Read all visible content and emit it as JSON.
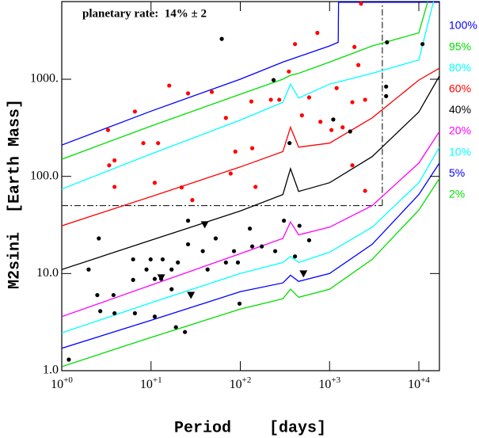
{
  "chart_data": {
    "type": "line",
    "annotation": "planetary rate:  14% ± 2",
    "xlabel": "Period    [days]",
    "ylabel": "M2sini  [Earth Mass]",
    "xscale": "log",
    "yscale": "log",
    "xlim": [
      1,
      17000
    ],
    "ylim": [
      1,
      6300
    ],
    "xticks": [
      {
        "value": 1,
        "label": "10",
        "exponent": "+0"
      },
      {
        "value": 10,
        "label": "10",
        "exponent": "+1"
      },
      {
        "value": 100,
        "label": "10",
        "exponent": "+2"
      },
      {
        "value": 1000,
        "label": "10",
        "exponent": "+3"
      },
      {
        "value": 10000,
        "label": "10",
        "exponent": "+4"
      }
    ],
    "yticks": [
      {
        "value": 1,
        "label": "1.0"
      },
      {
        "value": 10,
        "label": "10.0"
      },
      {
        "value": 100,
        "label": "100.0"
      },
      {
        "value": 1000,
        "label": "1000."
      }
    ],
    "series": [
      {
        "name": "100%",
        "color": "#0000ff",
        "x": [
          1,
          10,
          100,
          300,
          1000,
          1250,
          1260,
          17000
        ],
        "values": [
          210,
          470,
          1000,
          1500,
          2200,
          2400,
          6200,
          6200
        ]
      },
      {
        "name": "95%",
        "color": "#00dd00",
        "x": [
          1,
          10,
          100,
          300,
          365,
          450,
          1000,
          3000,
          10000,
          13000
        ],
        "values": [
          150,
          330,
          700,
          1000,
          1100,
          1150,
          1500,
          2200,
          3000,
          7000
        ]
      },
      {
        "name": "80%",
        "color": "#00ffff",
        "x": [
          1,
          10,
          100,
          300,
          365,
          450,
          1000,
          3000,
          10000,
          15000
        ],
        "values": [
          74,
          170,
          380,
          580,
          890,
          640,
          890,
          1150,
          1580,
          7000
        ]
      },
      {
        "name": "60%",
        "color": "#ff0000",
        "x": [
          1,
          10,
          100,
          300,
          365,
          450,
          1000,
          3000,
          10000,
          17000
        ],
        "values": [
          31,
          62,
          125,
          180,
          320,
          200,
          220,
          400,
          980,
          1300
        ]
      },
      {
        "name": "40%",
        "color": "#000000",
        "x": [
          1,
          10,
          100,
          300,
          365,
          450,
          1000,
          3000,
          10000,
          17000
        ],
        "values": [
          11,
          22,
          44,
          65,
          120,
          70,
          86,
          160,
          460,
          1080
        ]
      },
      {
        "name": "20%",
        "color": "#ff00ff",
        "x": [
          1,
          10,
          100,
          300,
          365,
          450,
          1000,
          3000,
          10000,
          17000
        ],
        "values": [
          3.6,
          7.6,
          16,
          23,
          34,
          25,
          30,
          50,
          137,
          290
        ]
      },
      {
        "name": "10%",
        "color": "#00ffff",
        "x": [
          1,
          10,
          100,
          300,
          365,
          450,
          1000,
          3000,
          10000,
          17000
        ],
        "values": [
          2.45,
          5,
          10,
          13,
          15,
          13,
          16.6,
          30,
          86,
          200
        ]
      },
      {
        "name": "5%",
        "color": "#0000ff",
        "x": [
          1,
          10,
          100,
          300,
          365,
          450,
          1000,
          3000,
          10000,
          17000
        ],
        "values": [
          1.7,
          3.3,
          6.5,
          8,
          9.6,
          8.3,
          10,
          20,
          65,
          137
        ]
      },
      {
        "name": "2%",
        "color": "#00dd00",
        "x": [
          1,
          10,
          100,
          300,
          365,
          450,
          1000,
          3000,
          10000,
          17000
        ],
        "values": [
          1.1,
          2.2,
          4.3,
          5.5,
          6.9,
          5.7,
          6.9,
          14,
          45,
          95
        ]
      }
    ],
    "points": [
      {
        "color": "#ff0000",
        "marker": "circle",
        "x": [
          3.3,
          3.9,
          3.4,
          6.6,
          3.9,
          16,
          26,
          48,
          69,
          88,
          78,
          29,
          22,
          11,
          8.2,
          12,
          133,
          136,
          148,
          273,
          350,
          410,
          730,
          590,
          490,
          790,
          1050,
          1400,
          1200,
          1800,
          2100,
          1900,
          2500,
          1800,
          2500,
          2250,
          220
        ],
        "values": [
          300,
          146,
          130,
          465,
          78,
          860,
          715,
          740,
          400,
          180,
          107,
          57,
          77,
          86,
          220,
          220,
          590,
          195,
          78,
          615,
          1200,
          2300,
          3000,
          650,
          425,
          365,
          300,
          320,
          810,
          580,
          1400,
          2150,
          615,
          130,
          71,
          6000,
          615
        ]
      },
      {
        "color": "#000000",
        "marker": "circle",
        "x": [
          62,
          236,
          356,
          1100,
          1700,
          4300,
          4400,
          11000,
          4300,
          2.6,
          2.0,
          2.5,
          2.7,
          3.8,
          6.3,
          6.3,
          8.9,
          9.9,
          11,
          13,
          13.5,
          17,
          20,
          26,
          38,
          43,
          53,
          69,
          85,
          94,
          128,
          136,
          174,
          246,
          308,
          460,
          590,
          410,
          6.6,
          11,
          19,
          24,
          98,
          26,
          17,
          3.9,
          1.2
        ],
        "values": [
          2600,
          980,
          220,
          385,
          290,
          840,
          2400,
          2300,
          670,
          23,
          11,
          6,
          4.1,
          6,
          14,
          8.6,
          11,
          14,
          8.8,
          8.8,
          14,
          11,
          13,
          35,
          17,
          11,
          23,
          13,
          17,
          13,
          29,
          19,
          19,
          17,
          35,
          31,
          22,
          15,
          3.9,
          3.6,
          2.8,
          2.5,
          4.9,
          20,
          6.9,
          3.9,
          1.3
        ]
      },
      {
        "color": "#000000",
        "marker": "triangle-down",
        "x": [
          40,
          13,
          28,
          510
        ],
        "values": [
          32,
          9.1,
          6,
          10
        ]
      }
    ],
    "reference_lines": {
      "y": 50,
      "x_end": 3900,
      "x": 3900
    }
  }
}
